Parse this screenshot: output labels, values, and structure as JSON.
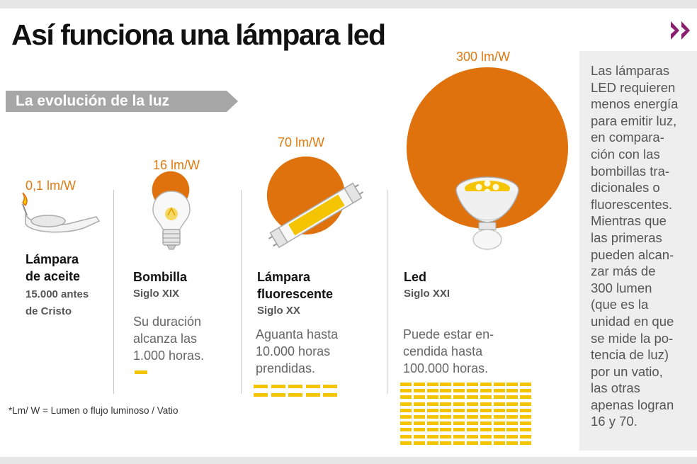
{
  "title": "Así funciona una lámpara led",
  "section_tag": "La evolución de la luz",
  "colors": {
    "orange": "#e0720e",
    "yellow": "#f5c400",
    "tag_bg": "#a6a6a6",
    "side_bg": "#eeeeee",
    "accent": "#8a1f6f"
  },
  "icons": {
    "next": "double-chevron-right-icon"
  },
  "items": [
    {
      "efficacy": "0,1 lm/W",
      "efficacy_value": 0.1,
      "name_line1": "Lámpara",
      "name_line2": "de aceite",
      "era_line1": "15.000 antes",
      "era_line2": "de Cristo",
      "desc": [],
      "bars": 0
    },
    {
      "efficacy": "16 lm/W",
      "efficacy_value": 16,
      "name_line1": "Bombilla",
      "era_line1": "Siglo XIX",
      "desc": [
        "Su duración",
        "alcanza las",
        "1.000 horas."
      ],
      "bars": 1
    },
    {
      "efficacy": "70 lm/W",
      "efficacy_value": 70,
      "name_line1": "Lámpara",
      "name_line2": "fluorescente",
      "era_line1": "Siglo XX",
      "desc": [
        "Aguanta hasta",
        "10.000 horas",
        "prendidas."
      ],
      "bars": 10
    },
    {
      "efficacy": "300 lm/W",
      "efficacy_value": 300,
      "name_line1": "Led",
      "era_line1": "Siglo XXI",
      "desc": [
        "Puede estar en-",
        "cendida hasta",
        "100.000 horas."
      ],
      "bars": 100
    }
  ],
  "footnote": "*Lm/ W = Lumen o flujo luminoso / Vatio",
  "sidebar": {
    "lines": [
      "Las lámparas",
      "LED requieren",
      "menos energía",
      "para emitir luz,",
      "en compara-",
      "ción con las",
      "bombillas tra-",
      "dicionales o",
      "fluorescentes.",
      "Mientras que",
      "las primeras",
      "pueden alcan-",
      "zar más de",
      "300 lumen",
      "(que es la",
      "unidad en que",
      "se mide la po-",
      "tencia de luz)",
      "por un vatio,",
      "las otras",
      "apenas logran",
      "16 y 70."
    ]
  }
}
